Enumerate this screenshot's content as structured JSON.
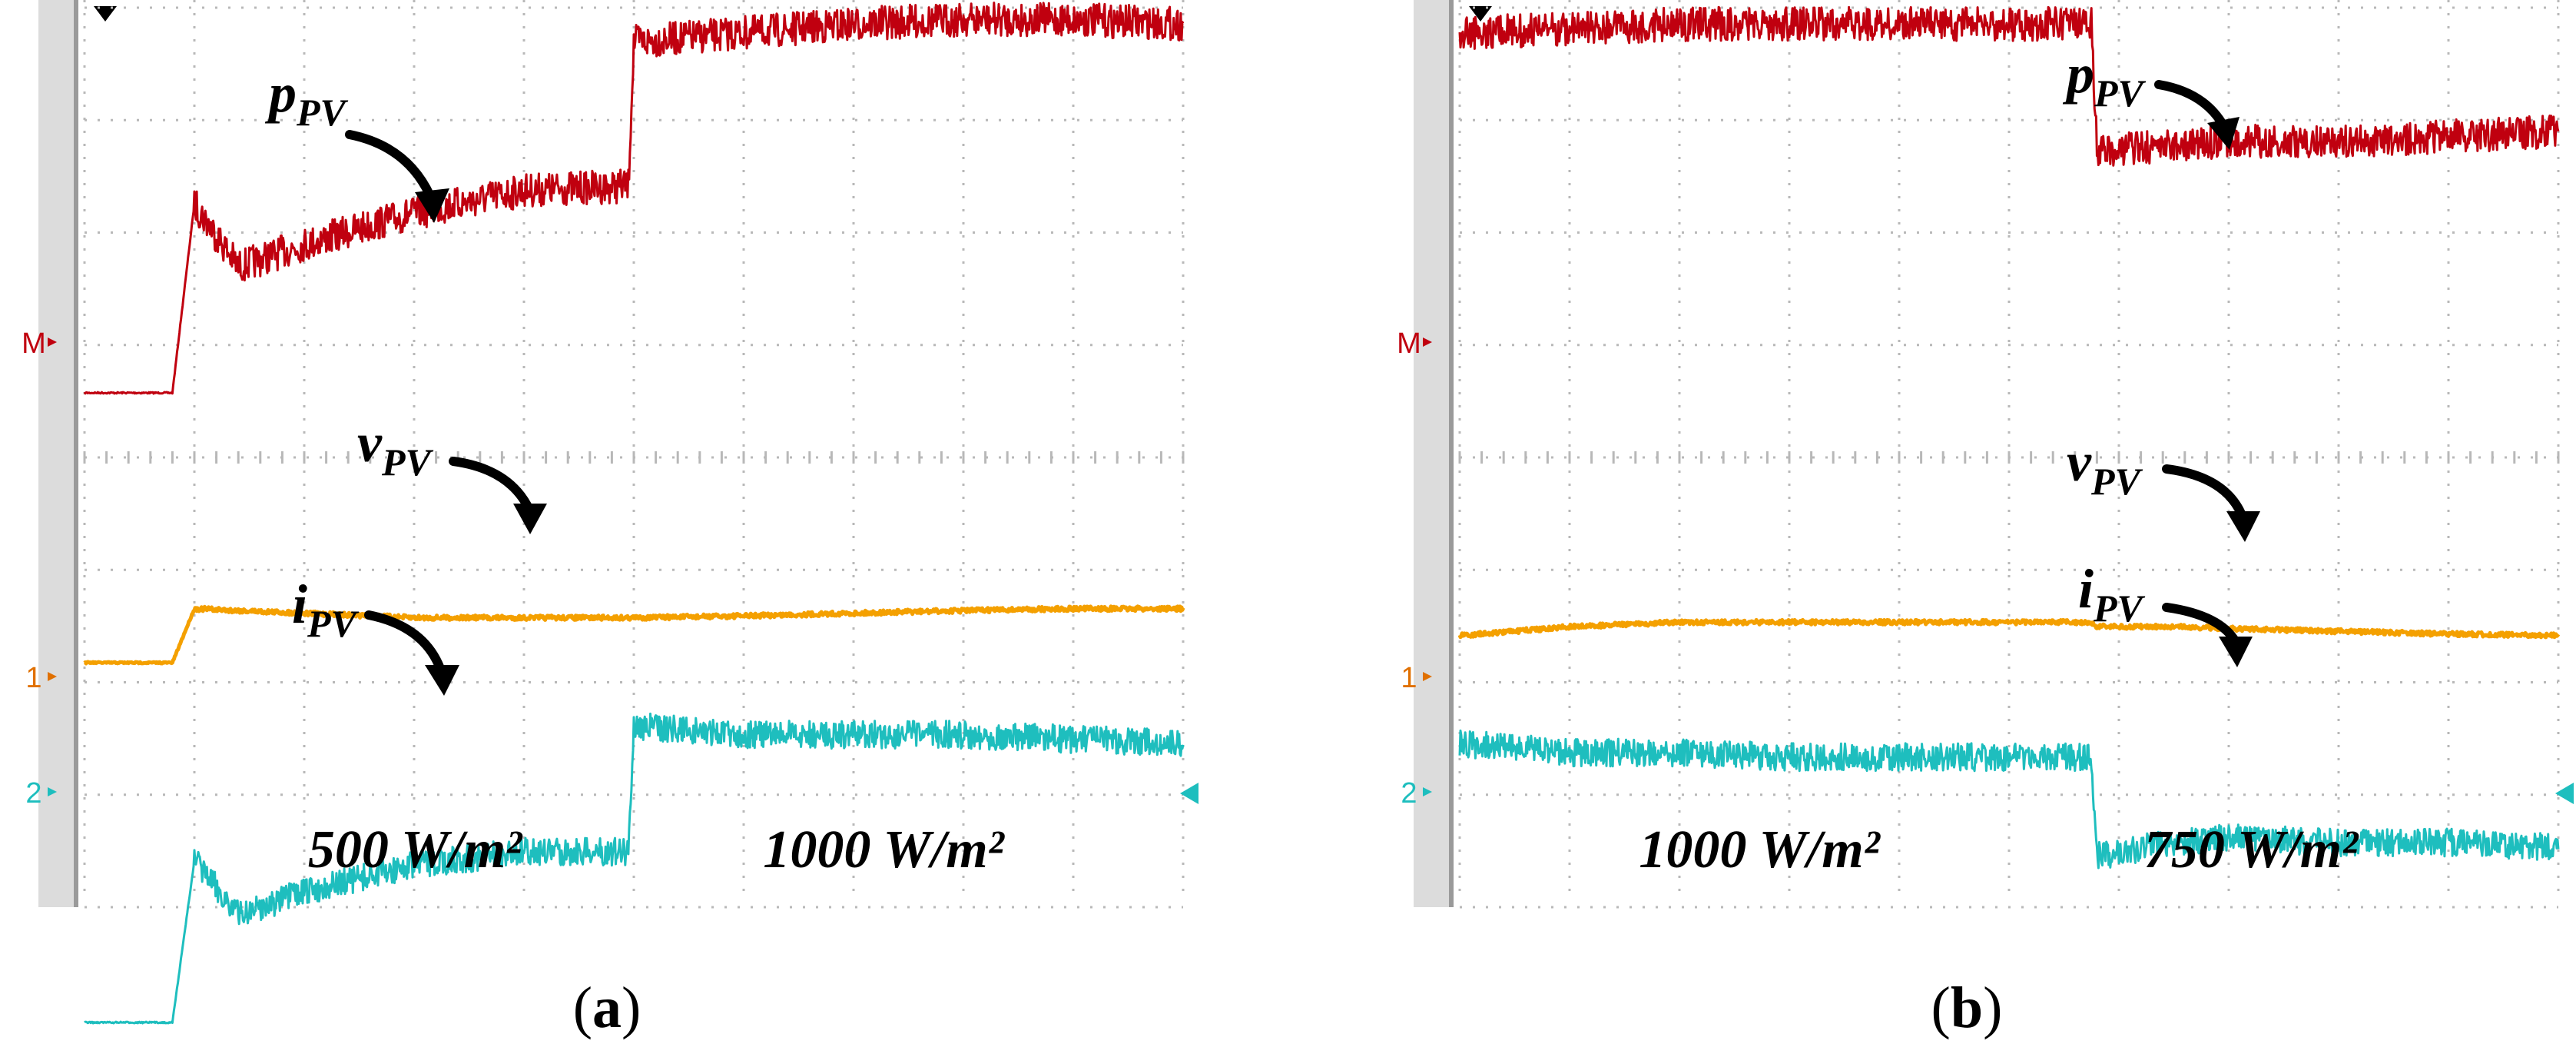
{
  "colors": {
    "power": "#C0000F",
    "voltage": "#F4A000",
    "current": "#1EBEBE",
    "grid": "#B8B8B8",
    "left_bar": "#DCDCDC",
    "marker_text": "#E07000",
    "marker_m": "#C0000F",
    "marker_2": "#1EBEBE"
  },
  "chart_data": [
    {
      "type": "line",
      "panel_label": "a",
      "x": [
        0,
        0.5,
        0.8,
        1.0,
        1.4,
        2.0,
        3.0,
        4.0,
        4.95,
        5.0,
        6.0,
        7.0,
        8.0,
        9.0,
        10.0
      ],
      "series": [
        {
          "name": "pPV",
          "label_sub": "PV",
          "label_main": "p",
          "values": [
            -3.0,
            -3.0,
            -3.0,
            -0.9,
            -1.6,
            -1.35,
            -1.0,
            -0.75,
            -0.7,
            0.9,
            1.0,
            1.1,
            1.15,
            1.15,
            1.1
          ]
        },
        {
          "name": "vPV",
          "label_sub": "PV",
          "label_main": "v",
          "values": [
            -6.0,
            -6.0,
            -6.0,
            -5.4,
            -5.42,
            -5.45,
            -5.5,
            -5.5,
            -5.5,
            -5.5,
            -5.48,
            -5.45,
            -5.42,
            -5.4,
            -5.4
          ]
        },
        {
          "name": "iPV",
          "label_sub": "PV",
          "label_main": "i",
          "values": [
            -10.0,
            -10.0,
            -10.0,
            -8.2,
            -8.8,
            -8.55,
            -8.25,
            -8.1,
            -8.1,
            -6.7,
            -6.8,
            -6.8,
            -6.8,
            -6.85,
            -6.9
          ]
        }
      ],
      "annotations": [
        "500 W/m²",
        "1000 W/m²"
      ],
      "channel_markers": [
        "M",
        "1",
        "2"
      ],
      "grid": true
    },
    {
      "type": "line",
      "panel_label": "b",
      "x": [
        0,
        1.0,
        2.0,
        3.0,
        4.0,
        5.0,
        5.75,
        5.8,
        6.5,
        7.0,
        8.0,
        9.0,
        10.0
      ],
      "series": [
        {
          "name": "pPV",
          "label_sub": "PV",
          "label_main": "p",
          "values": [
            1.0,
            1.05,
            1.1,
            1.1,
            1.1,
            1.1,
            1.1,
            -0.3,
            -0.25,
            -0.2,
            -0.2,
            -0.15,
            -0.1
          ]
        },
        {
          "name": "vPV",
          "label_sub": "PV",
          "label_main": "v",
          "values": [
            -5.7,
            -5.6,
            -5.55,
            -5.55,
            -5.55,
            -5.55,
            -5.55,
            -5.6,
            -5.6,
            -5.62,
            -5.65,
            -5.68,
            -5.7
          ]
        },
        {
          "name": "iPV",
          "label_sub": "PV",
          "label_main": "i",
          "values": [
            -6.9,
            -7.0,
            -7.0,
            -7.05,
            -7.05,
            -7.05,
            -7.05,
            -8.15,
            -8.0,
            -7.95,
            -8.0,
            -8.0,
            -8.05
          ]
        }
      ],
      "annotations": [
        "1000 W/m²",
        "750 W/m²"
      ],
      "channel_markers": [
        "M",
        "1",
        "2"
      ],
      "grid": true
    }
  ]
}
